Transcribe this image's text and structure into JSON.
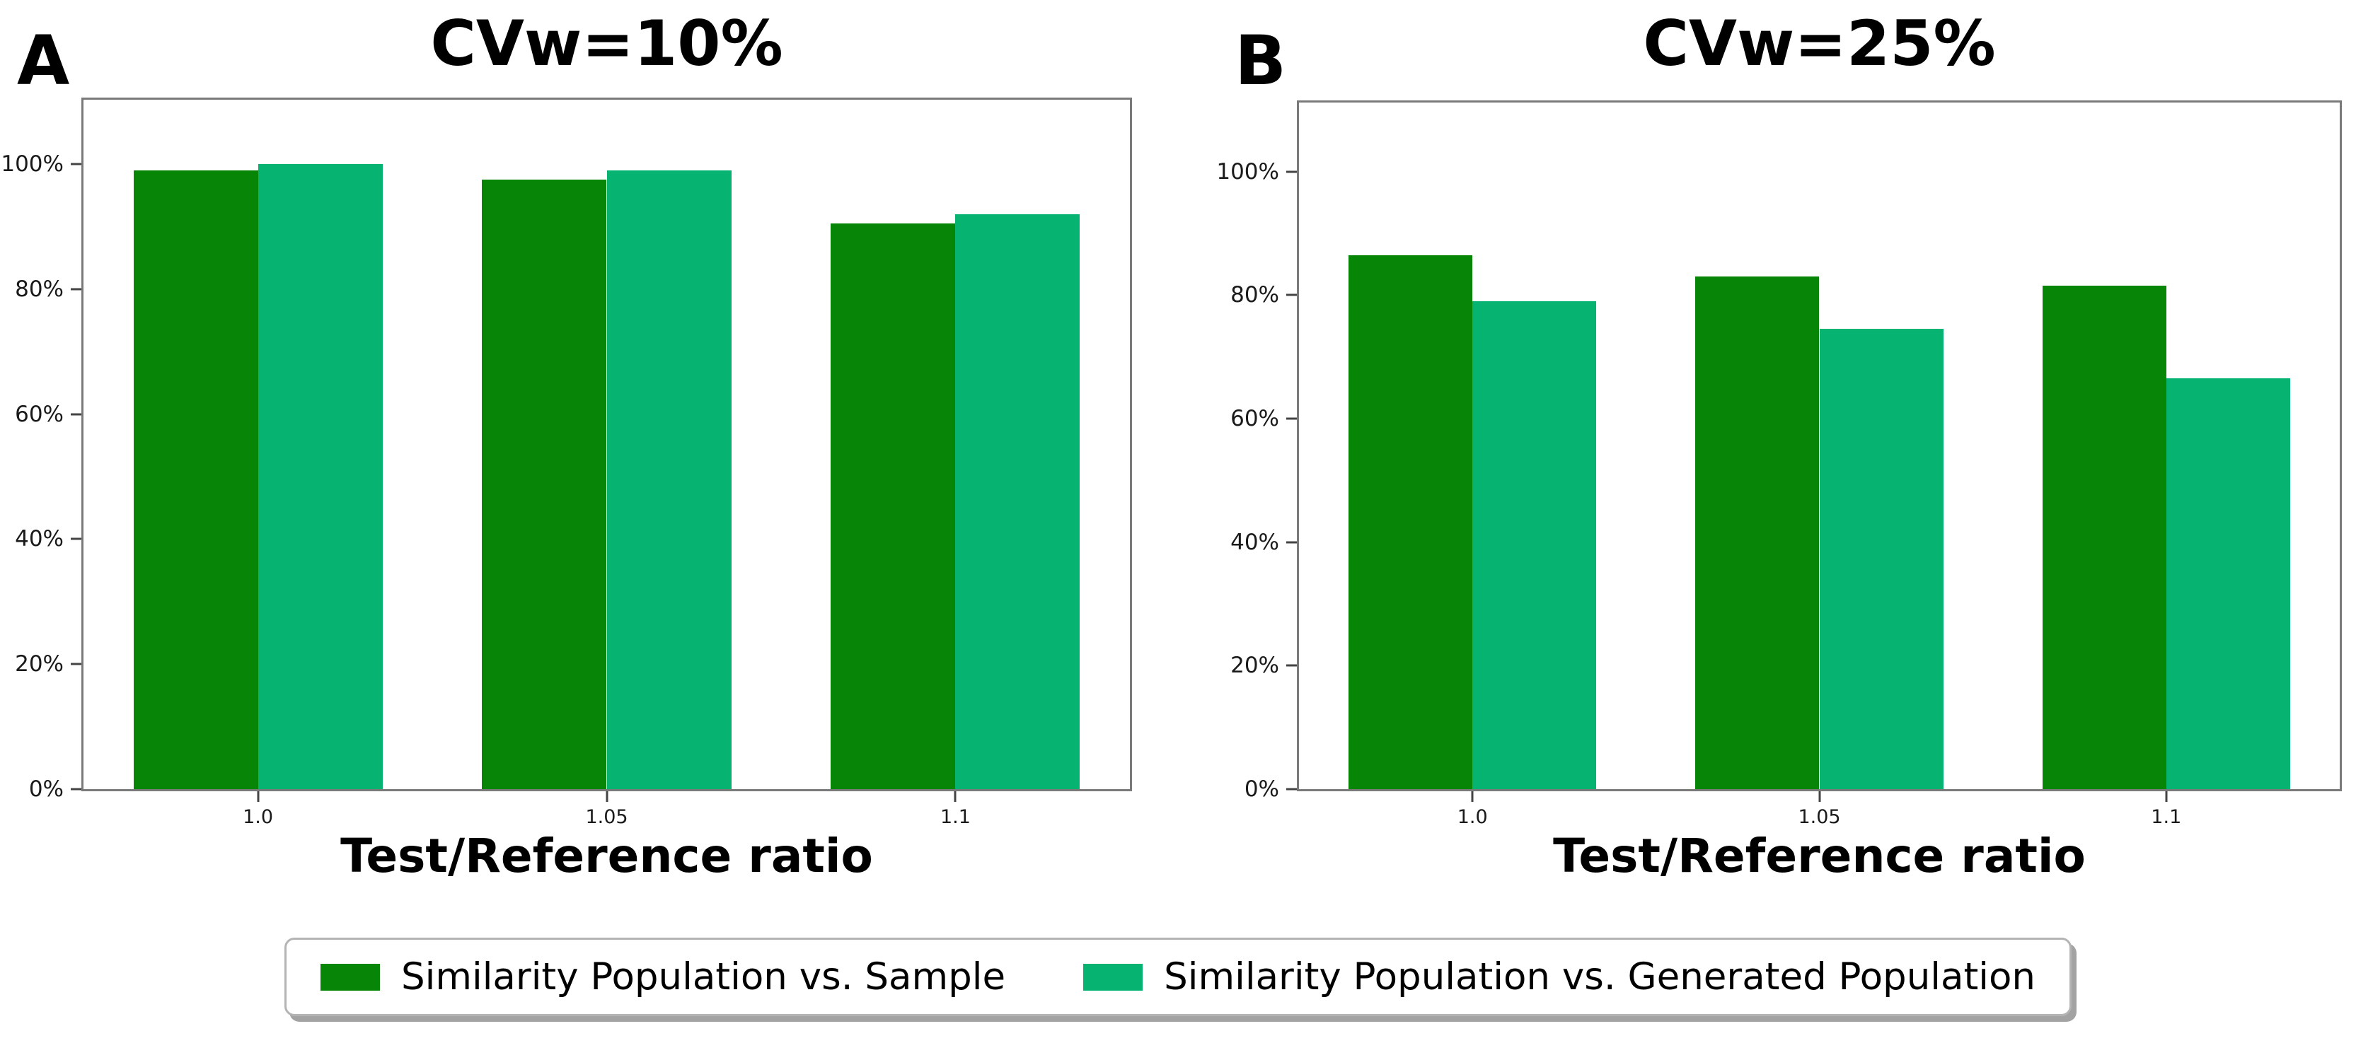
{
  "panels": [
    {
      "letter": "A"
    },
    {
      "letter": "B"
    }
  ],
  "chart_data": [
    {
      "type": "bar",
      "panel": "A",
      "title": "CVw=10%",
      "xlabel": "Test/Reference ratio",
      "ylabel": "",
      "categories": [
        "1.0",
        "1.05",
        "1.1"
      ],
      "series": [
        {
          "name": "Similarity Population vs. Sample",
          "color": "#078507",
          "values": [
            99,
            97.5,
            90.5
          ]
        },
        {
          "name": "Similarity Population vs. Generated Population",
          "color": "#06b371",
          "values": [
            100,
            99,
            92
          ]
        }
      ],
      "yticks": [
        0,
        20,
        40,
        60,
        80,
        100
      ],
      "ytick_labels": [
        "0%",
        "20%",
        "40%",
        "60%",
        "80%",
        "100%"
      ],
      "ylim": [
        0,
        110.3
      ],
      "grid": false,
      "legend_position": "shared-bottom"
    },
    {
      "type": "bar",
      "panel": "B",
      "title": "CVw=25%",
      "xlabel": "Test/Reference ratio",
      "ylabel": "",
      "categories": [
        "1.0",
        "1.05",
        "1.1"
      ],
      "series": [
        {
          "name": "Similarity Population vs. Sample",
          "color": "#078507",
          "values": [
            86.5,
            83,
            81.5
          ]
        },
        {
          "name": "Similarity Population vs. Generated Population",
          "color": "#06b371",
          "values": [
            79,
            74.5,
            66.5
          ]
        }
      ],
      "yticks": [
        0,
        20,
        40,
        60,
        80,
        100
      ],
      "ytick_labels": [
        "0%",
        "20%",
        "40%",
        "60%",
        "80%",
        "100%"
      ],
      "ylim": [
        0,
        111.2
      ],
      "grid": false,
      "legend_position": "shared-bottom"
    }
  ],
  "legend": {
    "items": [
      {
        "label": "Similarity Population vs. Sample",
        "color": "#078507"
      },
      {
        "label": "Similarity Population vs. Generated Population",
        "color": "#06b371"
      }
    ]
  },
  "colors": {
    "series_dark_green": "#078507",
    "series_light_green": "#06b371",
    "axis_frame": "#7a7a7a",
    "tick": "#444444",
    "legend_border": "#b4b4b4",
    "legend_shadow": "#a3a3a3",
    "background": "#ffffff"
  },
  "layout_hints": {
    "bar_width_fraction_of_plot": 0.119,
    "group_center_fractions": [
      0.1667,
      0.5,
      0.8333
    ]
  }
}
